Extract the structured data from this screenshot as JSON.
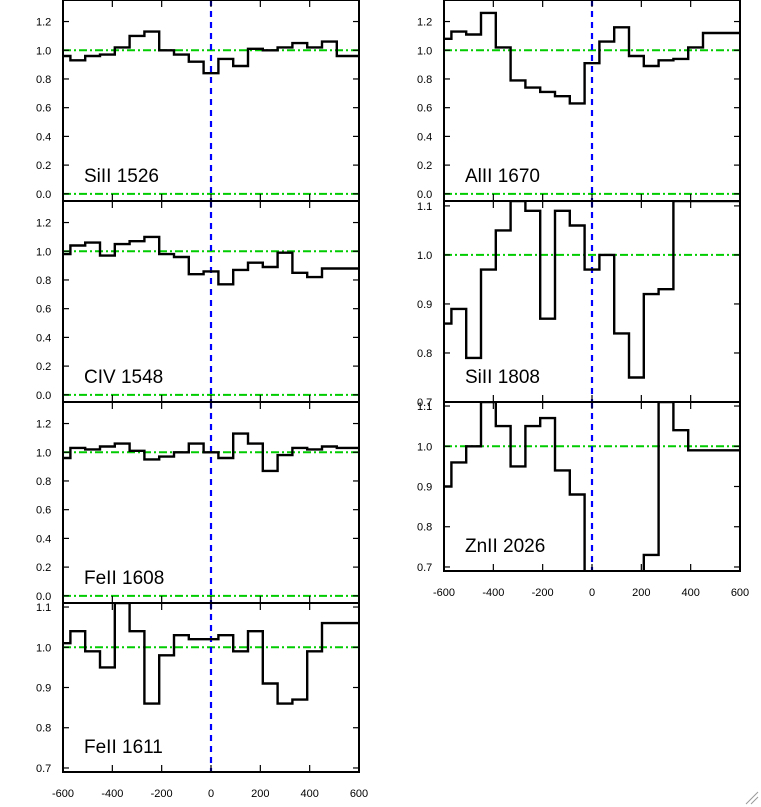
{
  "figure": {
    "xlim": [
      -600,
      600
    ],
    "x_ticks": [
      -600,
      -400,
      -200,
      0,
      200,
      400,
      600
    ],
    "x_tick_labels": [
      "-600",
      "-400",
      "-200",
      "0",
      "200",
      "400",
      "600"
    ]
  },
  "chart_data": [
    {
      "type": "line",
      "step": true,
      "label": "SiII 1526",
      "xlim": [
        -600,
        600
      ],
      "ylim": [
        -0.05,
        1.35
      ],
      "yticks": [
        "0.0",
        "0.2",
        "0.4",
        "0.6",
        "0.8",
        "1.0",
        "1.2"
      ],
      "reference_lines": [
        1.0,
        0.0
      ],
      "colors": {
        "spectrum": "#000000",
        "reference": "#00cc00",
        "zero_velocity": "#0000ff"
      },
      "bin_width": 60,
      "x": [
        -600,
        -540,
        -480,
        -420,
        -360,
        -300,
        -240,
        -180,
        -120,
        -60,
        0,
        60,
        120,
        180,
        240,
        300,
        360,
        420,
        480,
        540,
        600
      ],
      "values": [
        0.96,
        0.93,
        0.96,
        0.97,
        1.02,
        1.1,
        1.13,
        1.0,
        0.97,
        0.92,
        0.84,
        0.94,
        0.89,
        1.01,
        1.0,
        1.02,
        1.05,
        1.02,
        1.06,
        0.96,
        0.96
      ]
    },
    {
      "type": "line",
      "step": true,
      "label": "CIV 1548",
      "xlim": [
        -600,
        600
      ],
      "ylim": [
        -0.05,
        1.35
      ],
      "yticks": [
        "0.0",
        "0.2",
        "0.4",
        "0.6",
        "0.8",
        "1.0",
        "1.2"
      ],
      "reference_lines": [
        1.0,
        0.0
      ],
      "colors": {
        "spectrum": "#000000",
        "reference": "#00cc00",
        "zero_velocity": "#0000ff"
      },
      "bin_width": 60,
      "x": [
        -600,
        -540,
        -480,
        -420,
        -360,
        -300,
        -240,
        -180,
        -120,
        -60,
        0,
        60,
        120,
        180,
        240,
        300,
        360,
        420,
        480,
        540,
        600
      ],
      "values": [
        0.98,
        1.04,
        1.06,
        0.97,
        1.05,
        1.07,
        1.1,
        0.98,
        0.96,
        0.84,
        0.86,
        0.77,
        0.87,
        0.92,
        0.89,
        0.99,
        0.85,
        0.82,
        0.88,
        0.88,
        0.88
      ]
    },
    {
      "type": "line",
      "step": true,
      "label": "FeII 1608",
      "xlim": [
        -600,
        600
      ],
      "ylim": [
        -0.05,
        1.35
      ],
      "yticks": [
        "0.0",
        "0.2",
        "0.4",
        "0.6",
        "0.8",
        "1.0",
        "1.2"
      ],
      "reference_lines": [
        1.0,
        0.0
      ],
      "colors": {
        "spectrum": "#000000",
        "reference": "#00cc00",
        "zero_velocity": "#0000ff"
      },
      "bin_width": 60,
      "x": [
        -600,
        -540,
        -480,
        -420,
        -360,
        -300,
        -240,
        -180,
        -120,
        -60,
        0,
        60,
        120,
        180,
        240,
        300,
        360,
        420,
        480,
        540,
        600
      ],
      "values": [
        0.96,
        1.03,
        1.02,
        1.04,
        1.06,
        1.01,
        0.95,
        0.97,
        1.0,
        1.06,
        1.0,
        0.96,
        1.13,
        1.06,
        0.87,
        0.98,
        1.03,
        1.02,
        1.04,
        1.03,
        1.03
      ]
    },
    {
      "type": "line",
      "step": true,
      "label": "FeII 1611",
      "xlim": [
        -600,
        600
      ],
      "ylim": [
        0.69,
        1.11
      ],
      "yticks": [
        "0.7",
        "0.8",
        "0.9",
        "1.0",
        "1.1"
      ],
      "reference_lines": [
        1.0
      ],
      "colors": {
        "spectrum": "#000000",
        "reference": "#00cc00",
        "zero_velocity": "#0000ff"
      },
      "bin_width": 60,
      "x": [
        -600,
        -540,
        -480,
        -420,
        -360,
        -300,
        -240,
        -180,
        -120,
        -60,
        0,
        60,
        120,
        180,
        240,
        300,
        360,
        420,
        480,
        540,
        600
      ],
      "values": [
        1.01,
        1.04,
        0.99,
        0.95,
        1.11,
        1.04,
        0.86,
        0.98,
        1.03,
        1.02,
        1.02,
        1.03,
        0.99,
        1.04,
        0.91,
        0.86,
        0.87,
        0.99,
        1.06,
        1.06,
        1.06
      ]
    },
    {
      "type": "line",
      "step": true,
      "label": "AlII 1670",
      "xlim": [
        -600,
        600
      ],
      "ylim": [
        -0.05,
        1.35
      ],
      "yticks": [
        "0.0",
        "0.2",
        "0.4",
        "0.6",
        "0.8",
        "1.0",
        "1.2"
      ],
      "reference_lines": [
        1.0,
        0.0
      ],
      "colors": {
        "spectrum": "#000000",
        "reference": "#00cc00",
        "zero_velocity": "#0000ff"
      },
      "bin_width": 60,
      "x": [
        -600,
        -540,
        -480,
        -420,
        -360,
        -300,
        -240,
        -180,
        -120,
        -60,
        0,
        60,
        120,
        180,
        240,
        300,
        360,
        420,
        480,
        540,
        600
      ],
      "values": [
        1.08,
        1.13,
        1.11,
        1.26,
        1.02,
        0.79,
        0.74,
        0.71,
        0.68,
        0.63,
        0.91,
        1.06,
        1.16,
        0.96,
        0.89,
        0.93,
        0.94,
        1.02,
        1.12,
        1.12,
        1.12
      ]
    },
    {
      "type": "line",
      "step": true,
      "label": "SiII 1808",
      "xlim": [
        -600,
        600
      ],
      "ylim": [
        0.7,
        1.11
      ],
      "yticks": [
        "0.7",
        "0.8",
        "0.9",
        "1.0",
        "1.1"
      ],
      "reference_lines": [
        1.0
      ],
      "colors": {
        "spectrum": "#000000",
        "reference": "#00cc00",
        "zero_velocity": "#0000ff"
      },
      "bin_width": 60,
      "x": [
        -600,
        -540,
        -480,
        -420,
        -360,
        -300,
        -240,
        -180,
        -120,
        -60,
        0,
        60,
        120,
        180,
        240,
        300,
        360,
        420,
        480,
        540,
        600
      ],
      "values": [
        0.86,
        0.89,
        0.79,
        0.97,
        1.05,
        1.11,
        1.09,
        0.87,
        1.09,
        1.06,
        0.97,
        1.0,
        0.84,
        0.75,
        0.92,
        0.93,
        1.11,
        1.11,
        1.11,
        1.11,
        1.11
      ]
    },
    {
      "type": "line",
      "step": true,
      "label": "ZnII 2026",
      "xlim": [
        -600,
        600
      ],
      "ylim": [
        0.69,
        1.11
      ],
      "yticks": [
        "0.7",
        "0.8",
        "0.9",
        "1.0",
        "1.1"
      ],
      "reference_lines": [
        1.0
      ],
      "colors": {
        "spectrum": "#000000",
        "reference": "#00cc00",
        "zero_velocity": "#0000ff"
      },
      "bin_width": 60,
      "x": [
        -600,
        -540,
        -480,
        -420,
        -360,
        -300,
        -240,
        -180,
        -120,
        -60,
        0,
        60,
        120,
        180,
        240,
        300,
        360,
        420,
        480,
        540,
        600
      ],
      "values": [
        0.9,
        0.96,
        1.0,
        1.11,
        1.05,
        0.95,
        1.05,
        1.07,
        0.94,
        0.88,
        0.67,
        0.67,
        0.67,
        0.67,
        0.73,
        1.11,
        1.04,
        0.99,
        0.99,
        0.99,
        0.99
      ]
    }
  ]
}
